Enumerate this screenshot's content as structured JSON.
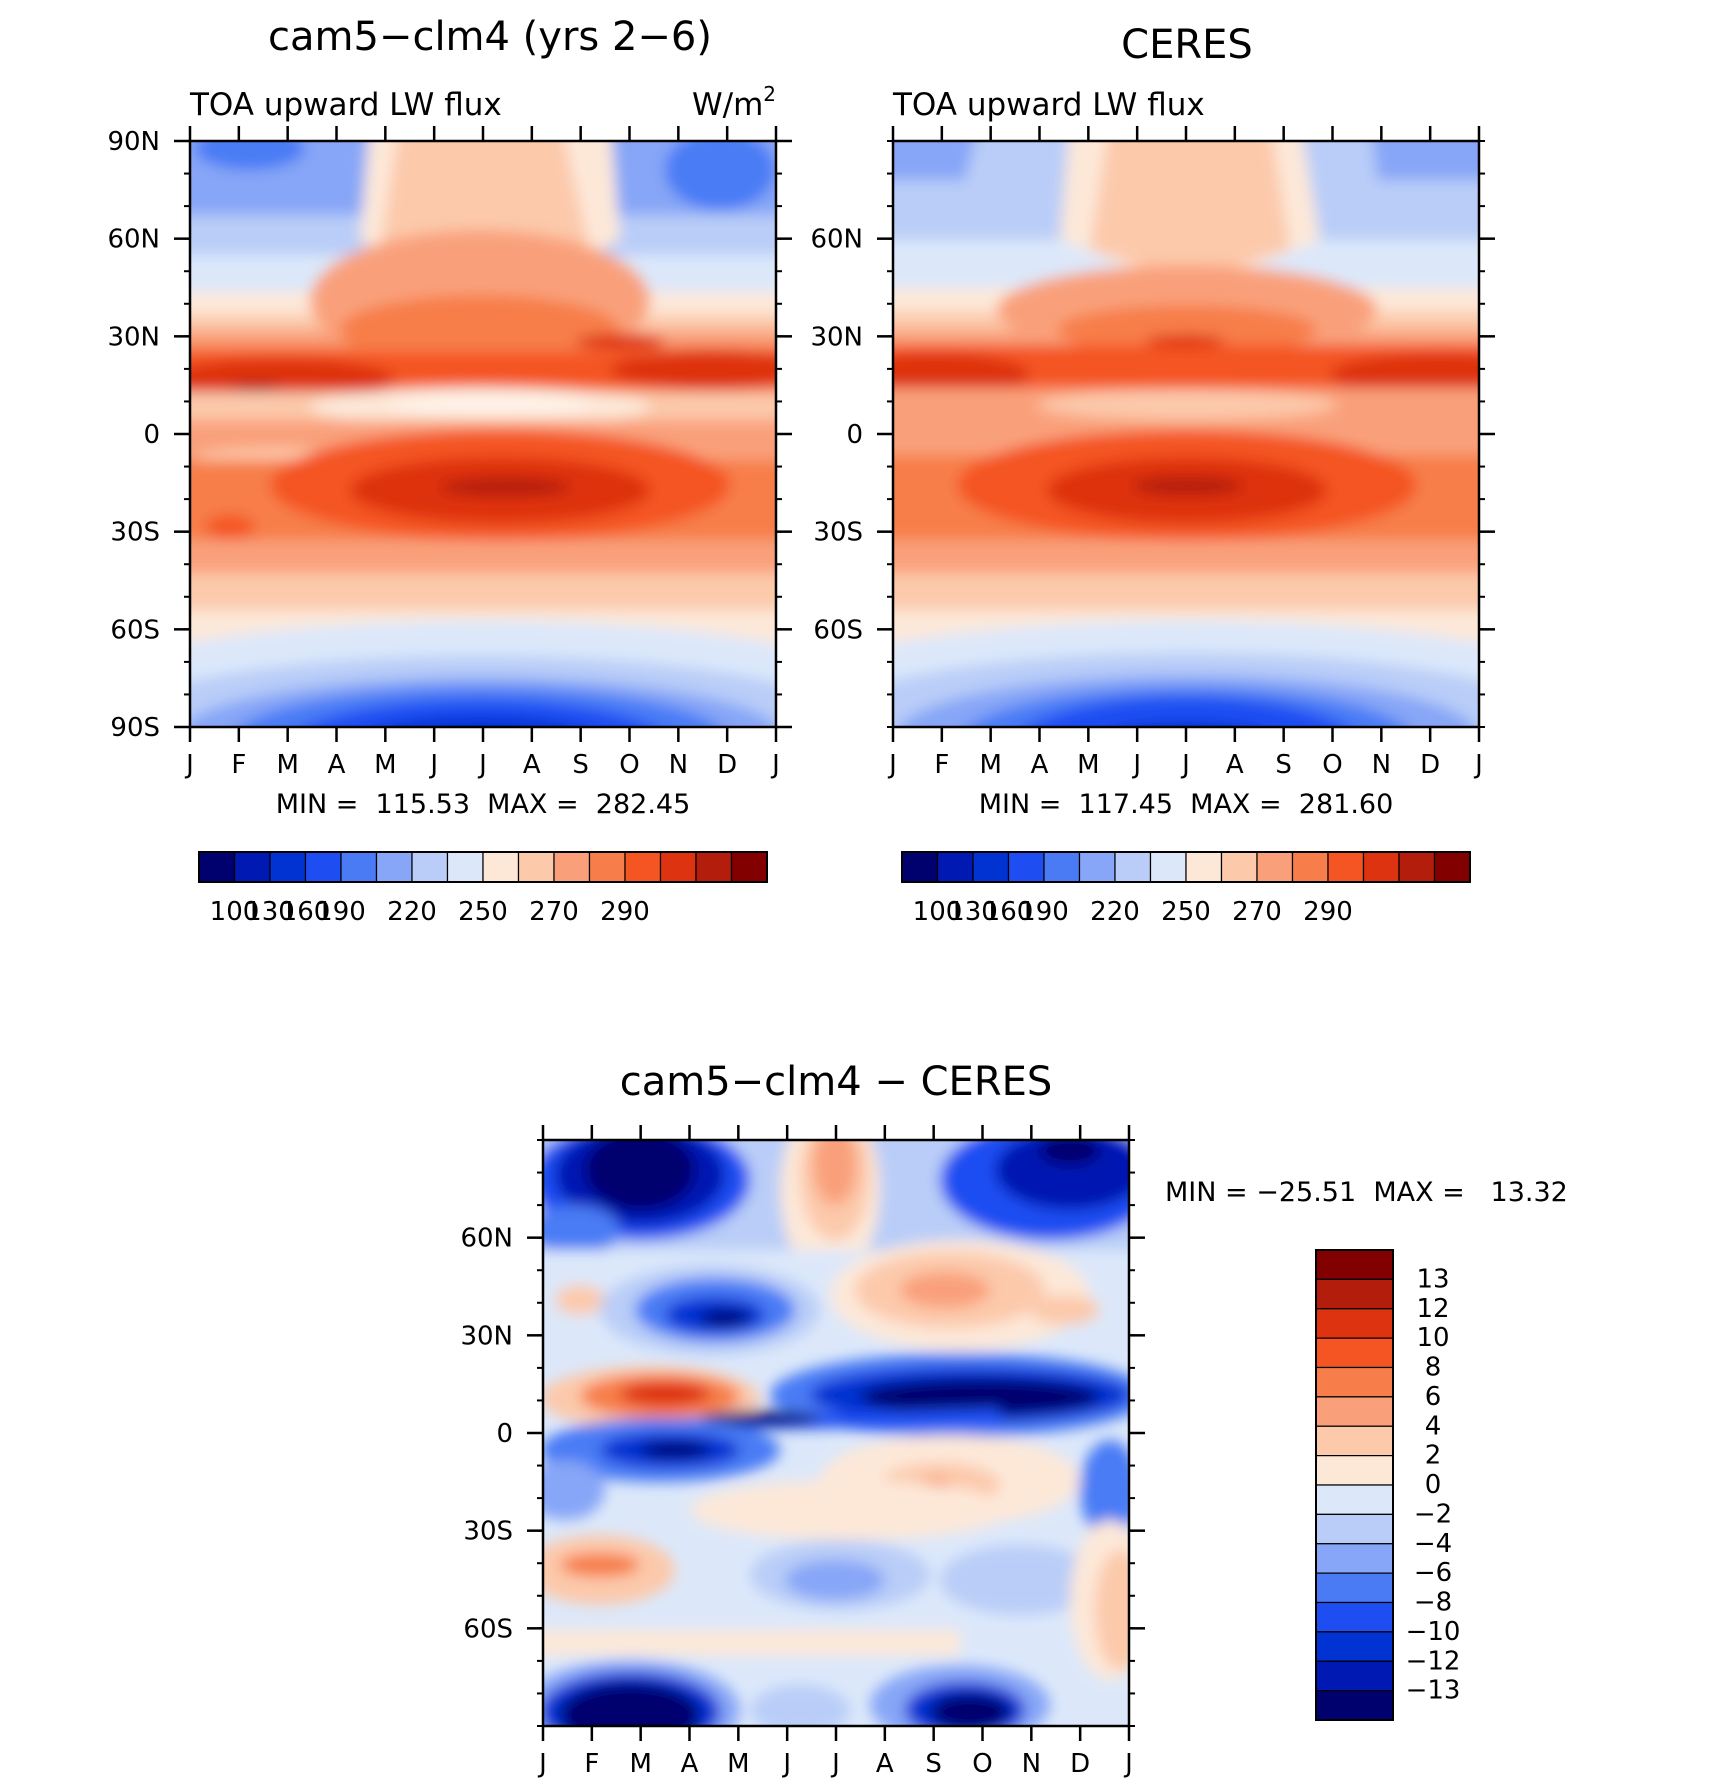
{
  "chart_data": [
    {
      "type": "heatmap",
      "title": "cam5−clm4 (yrs 2−6)",
      "subtitle_left": "TOA upward LW flux",
      "units": "W/m",
      "units_sup": "2",
      "x_ticks": [
        "J",
        "F",
        "M",
        "A",
        "M",
        "J",
        "J",
        "A",
        "S",
        "O",
        "N",
        "D",
        "J"
      ],
      "y_ticks": [
        "90N",
        "60N",
        "30N",
        "0",
        "30S",
        "60S",
        "90S"
      ],
      "y_values": [
        90,
        60,
        30,
        0,
        -30,
        -60,
        -90
      ],
      "ylim": [
        -90,
        90
      ],
      "stats": "MIN =  115.53  MAX =  282.45",
      "colorbar": {
        "labels": [
          "100",
          "130",
          "160",
          "190",
          "220",
          "250",
          "270",
          "290"
        ],
        "colors": [
          "#00006e",
          "#0019b2",
          "#0033d2",
          "#1e4ef2",
          "#4a7bf5",
          "#87a6f7",
          "#b9cdf8",
          "#dce8fa",
          "#fde8d8",
          "#fcc9ab",
          "#f9a07a",
          "#f77e4a",
          "#f45523",
          "#de3310",
          "#b21d0c",
          "#820000"
        ]
      }
    },
    {
      "type": "heatmap",
      "title": "CERES",
      "subtitle_left": "TOA upward LW flux",
      "x_ticks": [
        "J",
        "F",
        "M",
        "A",
        "M",
        "J",
        "J",
        "A",
        "S",
        "O",
        "N",
        "D",
        "J"
      ],
      "y_ticks": [
        "60N",
        "30N",
        "0",
        "30S",
        "60S"
      ],
      "y_values": [
        60,
        30,
        0,
        -30,
        -60
      ],
      "ylim": [
        -90,
        90
      ],
      "stats": "MIN =  117.45  MAX =  281.60",
      "colorbar": {
        "labels": [
          "100",
          "130",
          "160",
          "190",
          "220",
          "250",
          "270",
          "290"
        ],
        "colors": [
          "#00006e",
          "#0019b2",
          "#0033d2",
          "#1e4ef2",
          "#4a7bf5",
          "#87a6f7",
          "#b9cdf8",
          "#dce8fa",
          "#fde8d8",
          "#fcc9ab",
          "#f9a07a",
          "#f77e4a",
          "#f45523",
          "#de3310",
          "#b21d0c",
          "#820000"
        ]
      }
    },
    {
      "type": "heatmap",
      "title": "cam5−clm4 − CERES",
      "x_ticks": [
        "J",
        "F",
        "M",
        "A",
        "M",
        "J",
        "J",
        "A",
        "S",
        "O",
        "N",
        "D",
        "J"
      ],
      "y_ticks": [
        "60N",
        "30N",
        "0",
        "30S",
        "60S"
      ],
      "y_values": [
        60,
        30,
        0,
        -30,
        -60
      ],
      "ylim": [
        -90,
        90
      ],
      "stats": "MIN = −25.51  MAX =   13.32",
      "colorbar": {
        "labels": [
          "13",
          "12",
          "10",
          "8",
          "6",
          "4",
          "2",
          "0",
          "−2",
          "−4",
          "−6",
          "−8",
          "−10",
          "−12",
          "−13"
        ],
        "colors": [
          "#820000",
          "#b21d0c",
          "#de3310",
          "#f45523",
          "#f77e4a",
          "#f9a07a",
          "#fcc9ab",
          "#fde8d8",
          "#dce8fa",
          "#b9cdf8",
          "#87a6f7",
          "#4a7bf5",
          "#1e4ef2",
          "#0033d2",
          "#0019b2",
          "#00006e"
        ]
      }
    }
  ]
}
